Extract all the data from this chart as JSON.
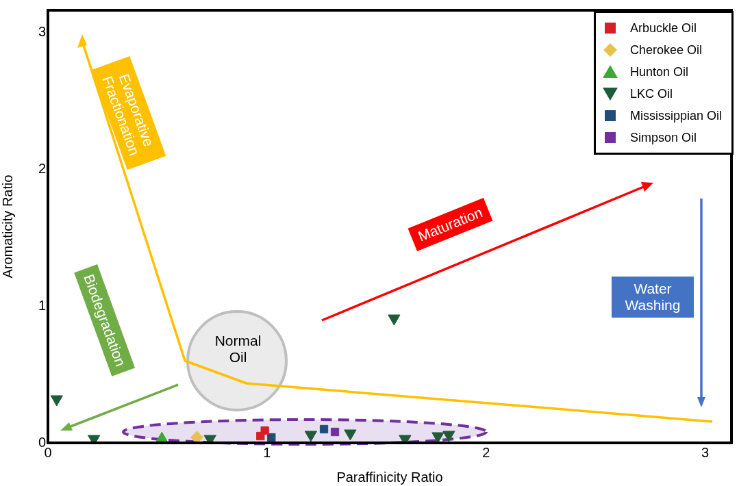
{
  "chart_data": {
    "type": "scatter",
    "xlabel": "Paraffinicity Ratio",
    "ylabel": "Aromaticity Ratio",
    "xlim": [
      0,
      3.12
    ],
    "ylim": [
      0,
      3.16
    ],
    "xticks": [
      0,
      1,
      2,
      3
    ],
    "yticks": [
      0,
      1,
      2,
      3
    ],
    "grid": false,
    "legend": "top right",
    "annotations": [
      "Evaporative Fractionation",
      "Maturation",
      "Biodegradation",
      "Water Washing",
      "Normal Oil"
    ],
    "series": [
      {
        "name": "Arbuckle Oil",
        "color": "#d62027",
        "marker": "square",
        "x": [
          0.99,
          0.97
        ],
        "values": [
          0.09,
          0.05
        ]
      },
      {
        "name": "Cherokee Oil",
        "color": "#e8c14f",
        "marker": "diamond",
        "x": [
          0.68
        ],
        "values": [
          0.04
        ]
      },
      {
        "name": "Hunton Oil",
        "color": "#3aaa35",
        "marker": "triangle",
        "x": [
          0.52
        ],
        "values": [
          0.03
        ]
      },
      {
        "name": "LKC Oil",
        "color": "#215c3a",
        "marker": "triangle-down",
        "x": [
          0.04,
          0.21,
          0.74,
          1.2,
          1.38,
          1.63,
          1.78,
          1.83,
          1.58
        ],
        "values": [
          0.32,
          0.03,
          0.03,
          0.06,
          0.07,
          0.03,
          0.05,
          0.06,
          0.91
        ]
      },
      {
        "name": "Mississippian Oil",
        "color": "#1f4e79",
        "marker": "square",
        "x": [
          1.02,
          1.26
        ],
        "values": [
          0.04,
          0.1
        ]
      },
      {
        "name": "Simpson Oil",
        "color": "#7030a0",
        "marker": "square",
        "x": [
          1.31
        ],
        "values": [
          0.08
        ]
      }
    ]
  }
}
